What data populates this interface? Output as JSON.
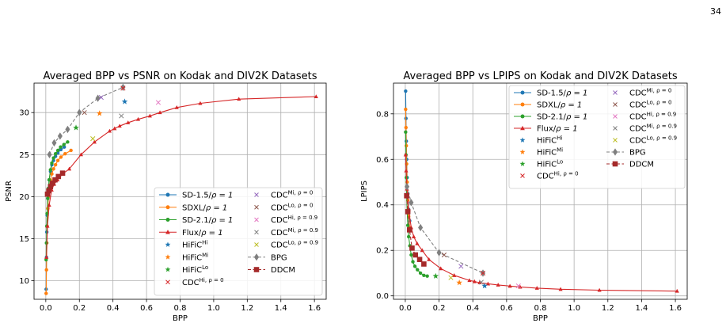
{
  "page_number": "34",
  "chart_data": [
    {
      "type": "line",
      "title": "Averaged BPP vs PSNR on Kodak and DIV2K Datasets",
      "xlabel": "BPP",
      "ylabel": "PSNR",
      "xlim": [
        -0.07,
        1.67
      ],
      "ylim": [
        7.8,
        33.5
      ],
      "xticks": [
        "0.0",
        "0.2",
        "0.4",
        "0.6",
        "0.8",
        "1.0",
        "1.2",
        "1.4",
        "1.6"
      ],
      "xtick_values": [
        0,
        0.2,
        0.4,
        0.6,
        0.8,
        1.0,
        1.2,
        1.4,
        1.6
      ],
      "yticks": [
        "10",
        "15",
        "20",
        "25",
        "30"
      ],
      "ytick_values": [
        10,
        15,
        20,
        25,
        30
      ],
      "grid": true,
      "legend_position": "lower-right",
      "series": [
        {
          "name": "SD-1.5/ρ = 1",
          "color": "#1f77b4",
          "marker": "circle",
          "line": "solid",
          "x": [
            0.002,
            0.004,
            0.006,
            0.008,
            0.012,
            0.016,
            0.02,
            0.028,
            0.036,
            0.046,
            0.058,
            0.072,
            0.09,
            0.11
          ],
          "y": [
            9.0,
            12.8,
            15.8,
            17.8,
            19.8,
            21.0,
            22.0,
            23.0,
            23.8,
            24.3,
            24.8,
            25.2,
            25.6,
            25.9
          ]
        },
        {
          "name": "SDXL/ρ = 1",
          "color": "#ff7f0e",
          "marker": "circle",
          "line": "solid",
          "x": [
            0.002,
            0.004,
            0.006,
            0.008,
            0.012,
            0.016,
            0.02,
            0.028,
            0.036,
            0.046,
            0.058,
            0.072,
            0.09,
            0.115,
            0.15
          ],
          "y": [
            8.5,
            11.3,
            14.5,
            16.5,
            18.6,
            20.0,
            21.0,
            22.0,
            22.7,
            23.3,
            23.8,
            24.3,
            24.7,
            25.1,
            25.5
          ]
        },
        {
          "name": "SD-2.1/ρ = 1",
          "color": "#2ca02c",
          "marker": "circle",
          "line": "solid",
          "x": [
            0.002,
            0.004,
            0.006,
            0.008,
            0.012,
            0.016,
            0.02,
            0.028,
            0.036,
            0.046,
            0.058,
            0.072,
            0.088,
            0.108,
            0.13
          ],
          "y": [
            12.5,
            14.5,
            16.5,
            18.0,
            19.8,
            21.0,
            22.0,
            23.2,
            24.0,
            24.6,
            25.1,
            25.5,
            25.9,
            26.2,
            26.5
          ]
        },
        {
          "name": "Flux/ρ = 1",
          "color": "#d62728",
          "marker": "triangle",
          "line": "solid",
          "x": [
            0.004,
            0.01,
            0.02,
            0.035,
            0.05,
            0.07,
            0.1,
            0.14,
            0.21,
            0.29,
            0.38,
            0.41,
            0.44,
            0.49,
            0.55,
            0.62,
            0.68,
            0.78,
            0.92,
            1.15,
            1.61
          ],
          "y": [
            12.8,
            16.5,
            19.0,
            20.8,
            21.5,
            22.0,
            22.7,
            23.3,
            25.0,
            26.5,
            27.8,
            28.1,
            28.4,
            28.8,
            29.2,
            29.6,
            30.0,
            30.6,
            31.1,
            31.6,
            31.9
          ]
        },
        {
          "name": "BPG",
          "color": "#7f7f7f",
          "marker": "diamond",
          "line": "dashed",
          "x": [
            0.022,
            0.05,
            0.085,
            0.13,
            0.2,
            0.31,
            0.46
          ],
          "y": [
            25.0,
            26.4,
            27.2,
            28.0,
            30.0,
            31.7,
            33.0
          ]
        },
        {
          "name": "DDCM",
          "color": "#a52a2a",
          "marker": "square",
          "line": "dashed",
          "x": [
            0.01,
            0.018,
            0.028,
            0.04,
            0.055,
            0.075,
            0.1
          ],
          "y": [
            20.3,
            20.7,
            21.2,
            21.6,
            22.0,
            22.4,
            22.8
          ]
        }
      ],
      "points": [
        {
          "name": "HiFiC^Hi",
          "color": "#1f77b4",
          "marker": "star",
          "x": 0.47,
          "y": 31.3
        },
        {
          "name": "HiFiC^Mi",
          "color": "#ff7f0e",
          "marker": "star",
          "x": 0.32,
          "y": 29.9
        },
        {
          "name": "HiFiC^Lo",
          "color": "#2ca02c",
          "marker": "star",
          "x": 0.18,
          "y": 28.2
        },
        {
          "name": "CDC^Hi,ρ=0",
          "color": "#d62728",
          "marker": "x",
          "x": 0.46,
          "y": 32.9
        },
        {
          "name": "CDC^Mi,ρ=0",
          "color": "#9467bd",
          "marker": "x",
          "x": 0.33,
          "y": 31.8
        },
        {
          "name": "CDC^Lo,ρ=0",
          "color": "#8c564b",
          "marker": "x",
          "x": 0.23,
          "y": 30.0
        },
        {
          "name": "CDC^Hi,ρ=0.9",
          "color": "#e377c2",
          "marker": "x",
          "x": 0.67,
          "y": 31.2
        },
        {
          "name": "CDC^Mi,ρ=0.9",
          "color": "#7f7f7f",
          "marker": "x",
          "x": 0.45,
          "y": 29.6
        },
        {
          "name": "CDC^Lo,ρ=0.9",
          "color": "#bcbd22",
          "marker": "x",
          "x": 0.28,
          "y": 26.9
        }
      ],
      "legend": {
        "position": "lower-right",
        "col1": [
          {
            "main": "SD-1.5/",
            "rest": "ρ = 1",
            "sup": "",
            "key": "SD-1.5"
          },
          {
            "main": "SDXL/",
            "rest": "ρ = 1",
            "sup": "",
            "key": "SDXL"
          },
          {
            "main": "SD-2.1/",
            "rest": "ρ = 1",
            "sup": "",
            "key": "SD-2.1"
          },
          {
            "main": "Flux/",
            "rest": "ρ = 1",
            "sup": "",
            "key": "Flux"
          },
          {
            "main": "HiFiC",
            "rest": "",
            "sup": "Hi",
            "key": "HiFiC^Hi"
          },
          {
            "main": "HiFiC",
            "rest": "",
            "sup": "Mi",
            "key": "HiFiC^Mi"
          },
          {
            "main": "HiFiC",
            "rest": "",
            "sup": "Lo",
            "key": "HiFiC^Lo"
          },
          {
            "main": "CDC",
            "rest": "",
            "sup": "Hi, ρ = 0",
            "key": "CDC^Hi,ρ=0"
          }
        ],
        "col2": [
          {
            "main": "CDC",
            "rest": "",
            "sup": "Mi, ρ = 0",
            "key": "CDC^Mi,ρ=0"
          },
          {
            "main": "CDC",
            "rest": "",
            "sup": "Lo, ρ = 0",
            "key": "CDC^Lo,ρ=0"
          },
          {
            "main": "CDC",
            "rest": "",
            "sup": "Hi, ρ = 0.9",
            "key": "CDC^Hi,ρ=0.9"
          },
          {
            "main": "CDC",
            "rest": "",
            "sup": "Mi, ρ = 0.9",
            "key": "CDC^Mi,ρ=0.9"
          },
          {
            "main": "CDC",
            "rest": "",
            "sup": "Lo, ρ = 0.9",
            "key": "CDC^Lo,ρ=0.9"
          },
          {
            "main": "BPG",
            "rest": "",
            "sup": "",
            "key": "BPG"
          },
          {
            "main": "DDCM",
            "rest": "",
            "sup": "",
            "key": "DDCM"
          }
        ]
      }
    },
    {
      "type": "line",
      "title": "Averaged BPP vs LPIPS on Kodak and DIV2K Datasets",
      "xlabel": "BPP",
      "ylabel": "LPIPS",
      "xlim": [
        -0.07,
        1.67
      ],
      "ylim": [
        -0.015,
        0.935
      ],
      "xticks": [
        "0.0",
        "0.2",
        "0.4",
        "0.6",
        "0.8",
        "1.0",
        "1.2",
        "1.4",
        "1.6"
      ],
      "xtick_values": [
        0,
        0.2,
        0.4,
        0.6,
        0.8,
        1.0,
        1.2,
        1.4,
        1.6
      ],
      "yticks": [
        "0.0",
        "0.2",
        "0.4",
        "0.6",
        "0.8"
      ],
      "ytick_values": [
        0,
        0.2,
        0.4,
        0.6,
        0.8
      ],
      "grid": true,
      "legend_position": "upper-right",
      "series": [
        {
          "name": "SD-1.5/ρ = 1",
          "color": "#1f77b4",
          "marker": "circle",
          "line": "solid",
          "x": [
            0.002,
            0.004,
            0.006,
            0.008,
            0.011,
            0.015,
            0.02,
            0.026
          ],
          "y": [
            0.9,
            0.78,
            0.68,
            0.6,
            0.52,
            0.45,
            0.38,
            0.33
          ]
        },
        {
          "name": "SDXL/ρ = 1",
          "color": "#ff7f0e",
          "marker": "circle",
          "line": "solid",
          "x": [
            0.002,
            0.004,
            0.006,
            0.008,
            0.011,
            0.015,
            0.02,
            0.026
          ],
          "y": [
            0.82,
            0.74,
            0.66,
            0.58,
            0.5,
            0.42,
            0.35,
            0.3
          ]
        },
        {
          "name": "SD-2.1/ρ = 1",
          "color": "#2ca02c",
          "marker": "circle",
          "line": "solid",
          "x": [
            0.002,
            0.004,
            0.006,
            0.008,
            0.011,
            0.015,
            0.02,
            0.027,
            0.035,
            0.045,
            0.057,
            0.072,
            0.09,
            0.11,
            0.13
          ],
          "y": [
            0.72,
            0.62,
            0.52,
            0.44,
            0.37,
            0.31,
            0.26,
            0.22,
            0.18,
            0.15,
            0.13,
            0.115,
            0.1,
            0.09,
            0.087
          ]
        },
        {
          "name": "Flux/ρ = 1",
          "color": "#d62728",
          "marker": "triangle",
          "line": "solid",
          "x": [
            0.002,
            0.005,
            0.01,
            0.02,
            0.035,
            0.05,
            0.07,
            0.1,
            0.14,
            0.21,
            0.29,
            0.38,
            0.41,
            0.44,
            0.49,
            0.55,
            0.62,
            0.68,
            0.78,
            0.92,
            1.15,
            1.61
          ],
          "y": [
            0.62,
            0.55,
            0.47,
            0.38,
            0.3,
            0.26,
            0.23,
            0.2,
            0.16,
            0.12,
            0.09,
            0.068,
            0.063,
            0.058,
            0.053,
            0.048,
            0.043,
            0.039,
            0.034,
            0.029,
            0.025,
            0.021
          ]
        },
        {
          "name": "BPG",
          "color": "#7f7f7f",
          "marker": "diamond",
          "line": "dashed",
          "x": [
            0.01,
            0.035,
            0.09,
            0.2,
            0.46
          ],
          "y": [
            0.48,
            0.41,
            0.3,
            0.19,
            0.1
          ]
        },
        {
          "name": "DDCM",
          "color": "#a52a2a",
          "marker": "square",
          "line": "dashed",
          "x": [
            0.008,
            0.015,
            0.025,
            0.04,
            0.06,
            0.085,
            0.11
          ],
          "y": [
            0.44,
            0.37,
            0.29,
            0.21,
            0.18,
            0.16,
            0.14
          ]
        }
      ],
      "points": [
        {
          "name": "HiFiC^Hi",
          "color": "#1f77b4",
          "marker": "star",
          "x": 0.47,
          "y": 0.044
        },
        {
          "name": "HiFiC^Mi",
          "color": "#ff7f0e",
          "marker": "star",
          "x": 0.32,
          "y": 0.058
        },
        {
          "name": "HiFiC^Lo",
          "color": "#2ca02c",
          "marker": "star",
          "x": 0.18,
          "y": 0.087
        },
        {
          "name": "CDC^Hi,ρ=0",
          "color": "#d62728",
          "marker": "x",
          "x": 0.46,
          "y": 0.1
        },
        {
          "name": "CDC^Mi,ρ=0",
          "color": "#9467bd",
          "marker": "x",
          "x": 0.33,
          "y": 0.13
        },
        {
          "name": "CDC^Lo,ρ=0",
          "color": "#8c564b",
          "marker": "x",
          "x": 0.23,
          "y": 0.18
        },
        {
          "name": "CDC^Hi,ρ=0.9",
          "color": "#e377c2",
          "marker": "x",
          "x": 0.67,
          "y": 0.044
        },
        {
          "name": "CDC^Mi,ρ=0.9",
          "color": "#7f7f7f",
          "marker": "x",
          "x": 0.45,
          "y": 0.06
        },
        {
          "name": "CDC^Lo,ρ=0.9",
          "color": "#bcbd22",
          "marker": "x",
          "x": 0.27,
          "y": 0.08
        }
      ],
      "legend": {
        "position": "upper-right",
        "col1": [
          {
            "main": "SD-1.5/",
            "rest": "ρ = 1",
            "sup": "",
            "key": "SD-1.5"
          },
          {
            "main": "SDXL/",
            "rest": "ρ = 1",
            "sup": "",
            "key": "SDXL"
          },
          {
            "main": "SD-2.1/",
            "rest": "ρ = 1",
            "sup": "",
            "key": "SD-2.1"
          },
          {
            "main": "Flux/",
            "rest": "ρ = 1",
            "sup": "",
            "key": "Flux"
          },
          {
            "main": "HiFiC",
            "rest": "",
            "sup": "Hi",
            "key": "HiFiC^Hi"
          },
          {
            "main": "HiFiC",
            "rest": "",
            "sup": "Mi",
            "key": "HiFiC^Mi"
          },
          {
            "main": "HiFiC",
            "rest": "",
            "sup": "Lo",
            "key": "HiFiC^Lo"
          },
          {
            "main": "CDC",
            "rest": "",
            "sup": "Hi, ρ = 0",
            "key": "CDC^Hi,ρ=0"
          }
        ],
        "col2": [
          {
            "main": "CDC",
            "rest": "",
            "sup": "Mi, ρ = 0",
            "key": "CDC^Mi,ρ=0"
          },
          {
            "main": "CDC",
            "rest": "",
            "sup": "Lo, ρ = 0",
            "key": "CDC^Lo,ρ=0"
          },
          {
            "main": "CDC",
            "rest": "",
            "sup": "Hi, ρ = 0.9",
            "key": "CDC^Hi,ρ=0.9"
          },
          {
            "main": "CDC",
            "rest": "",
            "sup": "Mi, ρ = 0.9",
            "key": "CDC^Mi,ρ=0.9"
          },
          {
            "main": "CDC",
            "rest": "",
            "sup": "Lo, ρ = 0.9",
            "key": "CDC^Lo,ρ=0.9"
          },
          {
            "main": "BPG",
            "rest": "",
            "sup": "",
            "key": "BPG"
          },
          {
            "main": "DDCM",
            "rest": "",
            "sup": "",
            "key": "DDCM"
          }
        ]
      }
    }
  ]
}
